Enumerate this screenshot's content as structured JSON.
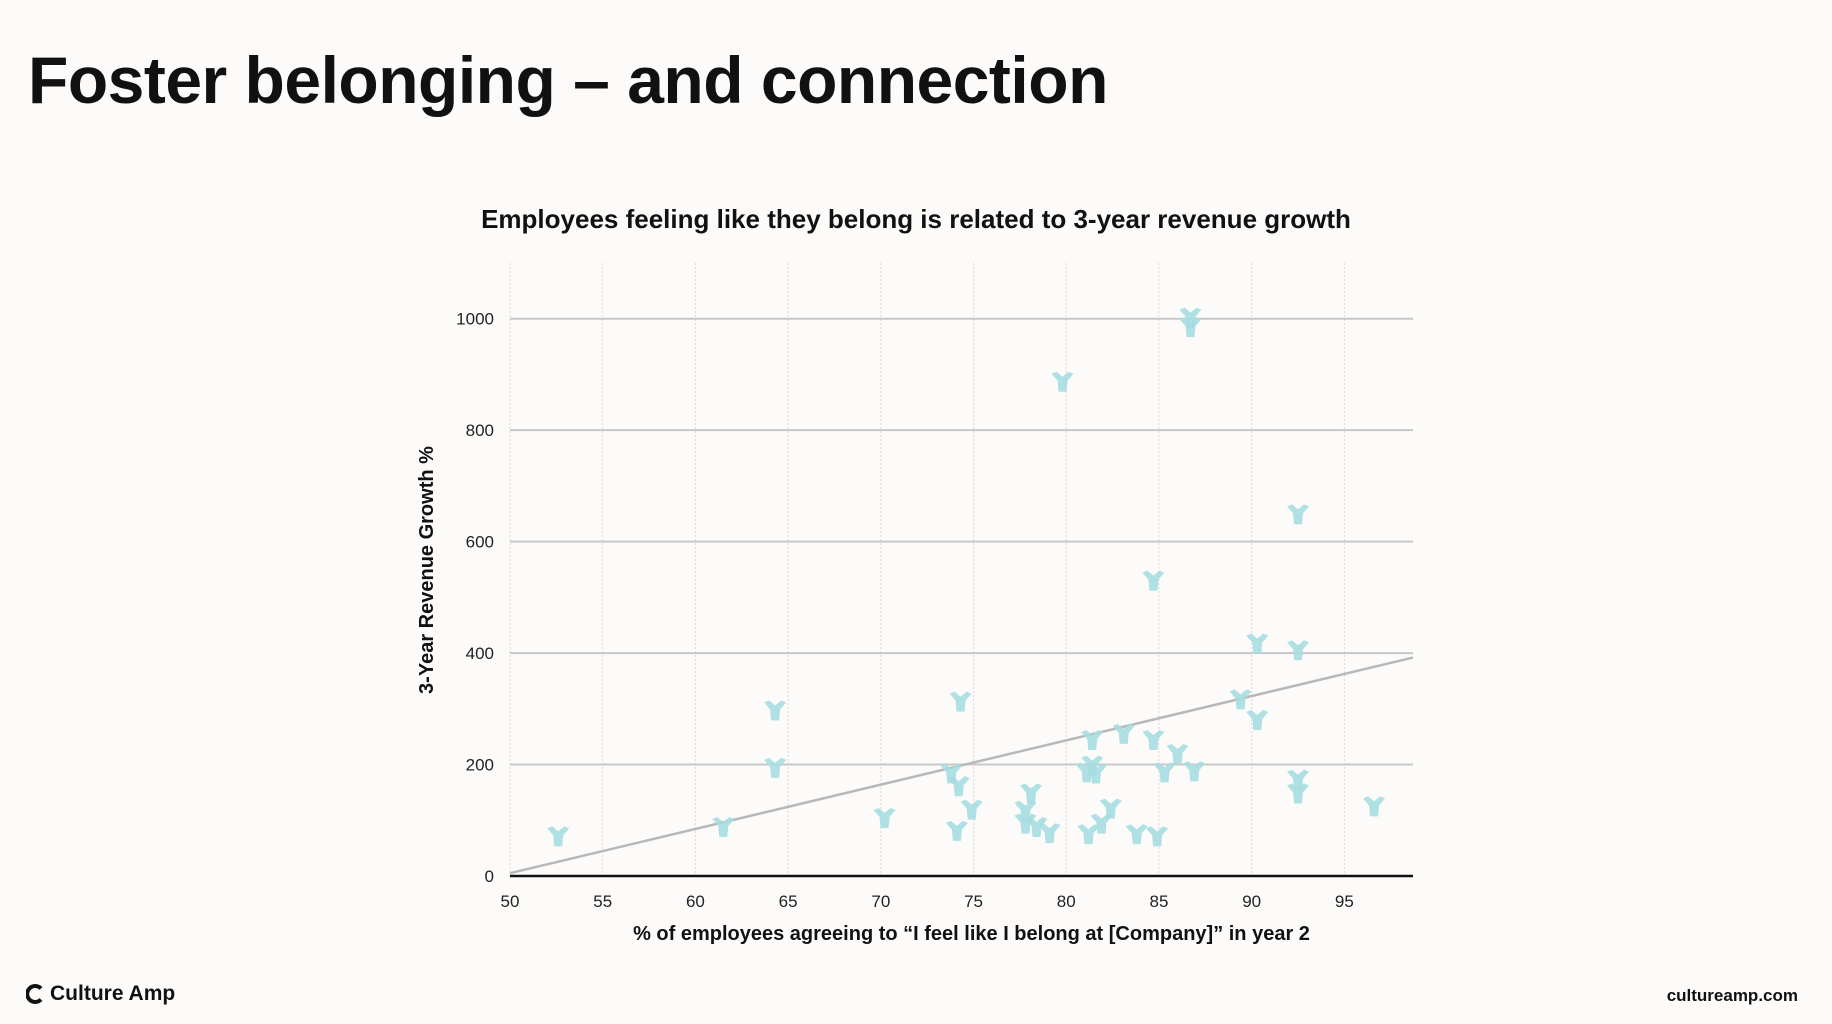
{
  "page": {
    "title": "Foster belonging – and connection"
  },
  "footer": {
    "brand": "Culture Amp",
    "url": "cultureamp.com"
  },
  "chart_data": {
    "type": "scatter",
    "title": "Employees feeling like they belong is related to 3-year revenue growth",
    "xlabel": "% of employees agreeing to “I feel like I belong at [Company]” in year 2",
    "ylabel": "3-Year Revenue Growth %",
    "xlim": [
      50,
      98.7
    ],
    "ylim": [
      0,
      1100
    ],
    "xticks": [
      50,
      55,
      60,
      65,
      70,
      75,
      80,
      85,
      90,
      95
    ],
    "yticks": [
      0,
      200,
      400,
      600,
      800,
      1000
    ],
    "grid": true,
    "marker_color": "#a6dde1",
    "trendline": {
      "x": [
        50,
        98.7
      ],
      "y": [
        5,
        392
      ],
      "color": "#b8b8b8"
    },
    "points": [
      [
        52.6,
        71
      ],
      [
        61.5,
        88
      ],
      [
        64.3,
        297
      ],
      [
        64.3,
        194
      ],
      [
        70.2,
        104
      ],
      [
        74.3,
        313
      ],
      [
        73.8,
        184
      ],
      [
        74.2,
        161
      ],
      [
        74.1,
        81
      ],
      [
        74.9,
        119
      ],
      [
        79.8,
        887
      ],
      [
        86.7,
        1002
      ],
      [
        86.7,
        985
      ],
      [
        92.5,
        649
      ],
      [
        84.7,
        530
      ],
      [
        90.3,
        417
      ],
      [
        92.5,
        405
      ],
      [
        89.4,
        317
      ],
      [
        90.3,
        280
      ],
      [
        81.4,
        244
      ],
      [
        83.1,
        255
      ],
      [
        84.7,
        244
      ],
      [
        86.0,
        219
      ],
      [
        85.3,
        186
      ],
      [
        86.9,
        188
      ],
      [
        81.4,
        198
      ],
      [
        81.1,
        186
      ],
      [
        81.6,
        184
      ],
      [
        92.5,
        173
      ],
      [
        92.5,
        148
      ],
      [
        96.6,
        125
      ],
      [
        78.1,
        148
      ],
      [
        77.8,
        117
      ],
      [
        77.8,
        94
      ],
      [
        78.4,
        88
      ],
      [
        79.1,
        77
      ],
      [
        81.2,
        75
      ],
      [
        81.9,
        94
      ],
      [
        82.4,
        121
      ],
      [
        83.8,
        75
      ],
      [
        84.9,
        71
      ]
    ]
  }
}
